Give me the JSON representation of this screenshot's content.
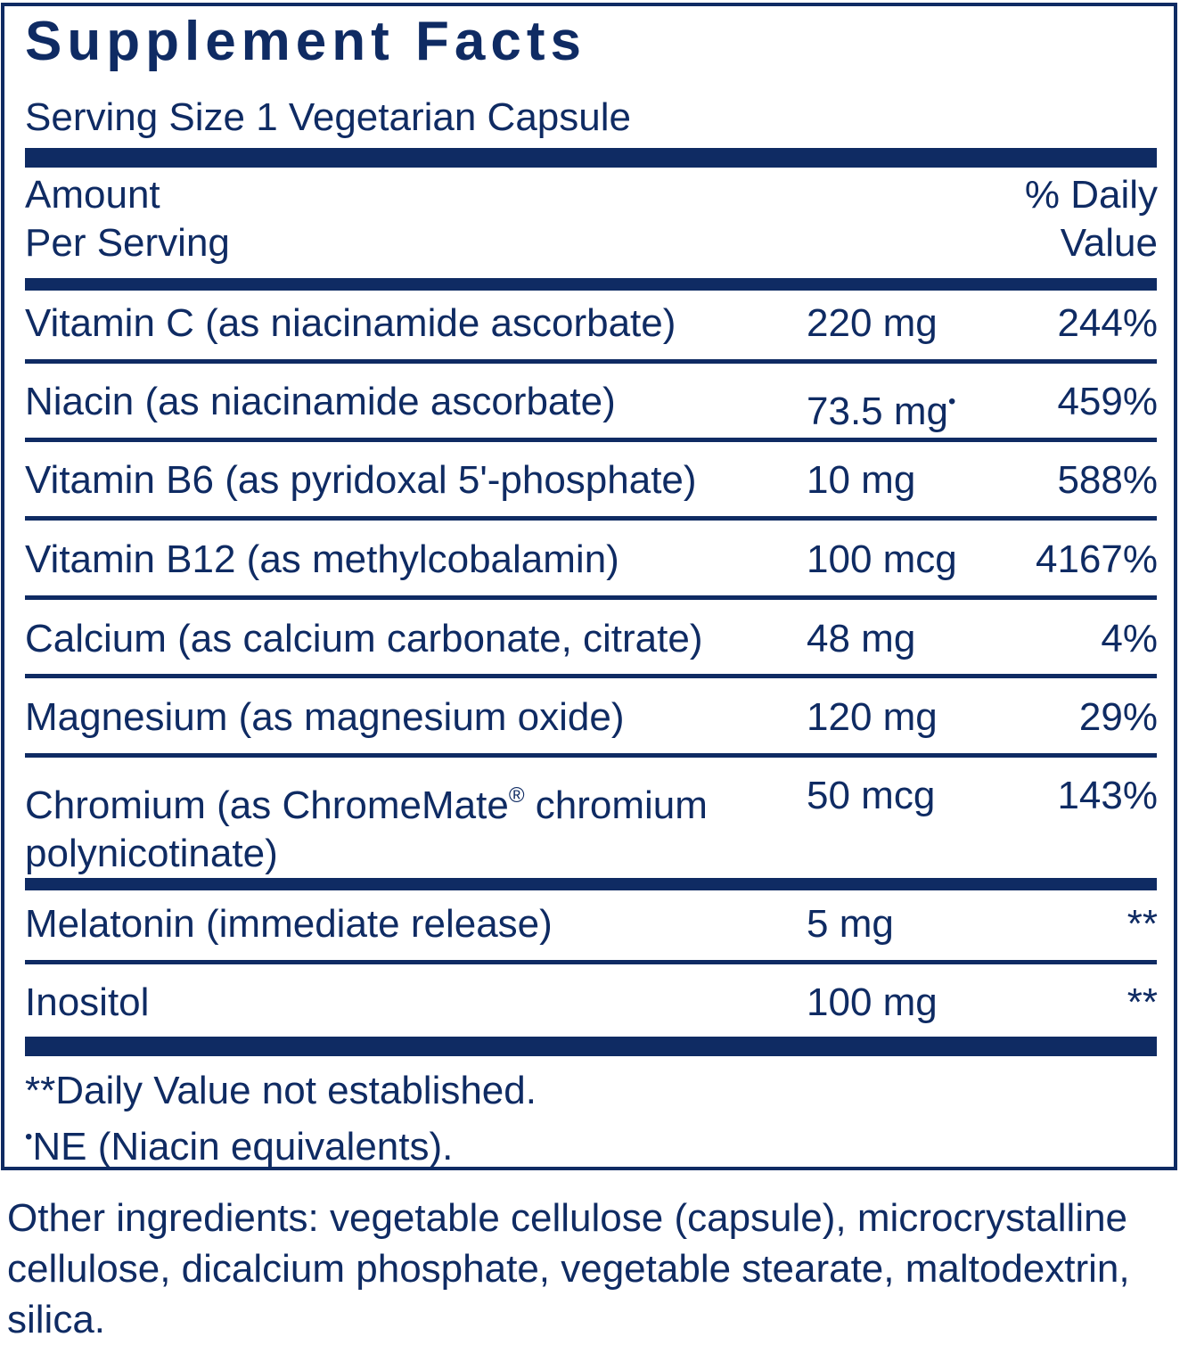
{
  "title": "Supplement Facts",
  "serving_size": "Serving Size 1 Vegetarian Capsule",
  "header": {
    "amount_line1": "Amount",
    "amount_line2": "Per Serving",
    "dv_line1": "% Daily",
    "dv_line2": "Value"
  },
  "rows": [
    {
      "name": "Vitamin C (as niacinamide ascorbate)",
      "amount": "220 mg",
      "dv": "244%"
    },
    {
      "name": "Niacin (as niacinamide ascorbate)",
      "amount": "73.5 mg",
      "amount_mark": "•",
      "dv": "459%"
    },
    {
      "name": "Vitamin B6 (as pyridoxal 5'-phosphate)",
      "amount": "10 mg",
      "dv": "588%"
    },
    {
      "name": "Vitamin B12 (as methylcobalamin)",
      "amount": "100 mcg",
      "dv": "4167%"
    },
    {
      "name": "Calcium (as calcium carbonate, citrate)",
      "amount": "48 mg",
      "dv": "4%"
    },
    {
      "name": "Magnesium (as magnesium oxide)",
      "amount": "120 mg",
      "dv": "29%"
    },
    {
      "name_line1_a": "Chromium (as ChromeMate",
      "name_line1_reg": "®",
      "name_line1_b": " chromium",
      "name_line2": "polynicotinate)",
      "amount": "50 mcg",
      "dv": "143%"
    },
    {
      "name": "Melatonin (immediate release)",
      "amount": "5 mg",
      "dv": "**"
    },
    {
      "name": "Inositol",
      "amount": "100 mg",
      "dv": "**"
    }
  ],
  "footnotes": {
    "dv_not_established": "**Daily Value not established.",
    "ne_mark": "•",
    "ne_text": "NE (Niacin equivalents)."
  },
  "other_ingredients": "Other ingredients: vegetable cellulose (capsule), microcrystalline cellulose, dicalcium phosphate, vegetable stearate, maltodextrin, silica.",
  "colors": {
    "ink": "#0f2b63",
    "background": "#ffffff"
  }
}
